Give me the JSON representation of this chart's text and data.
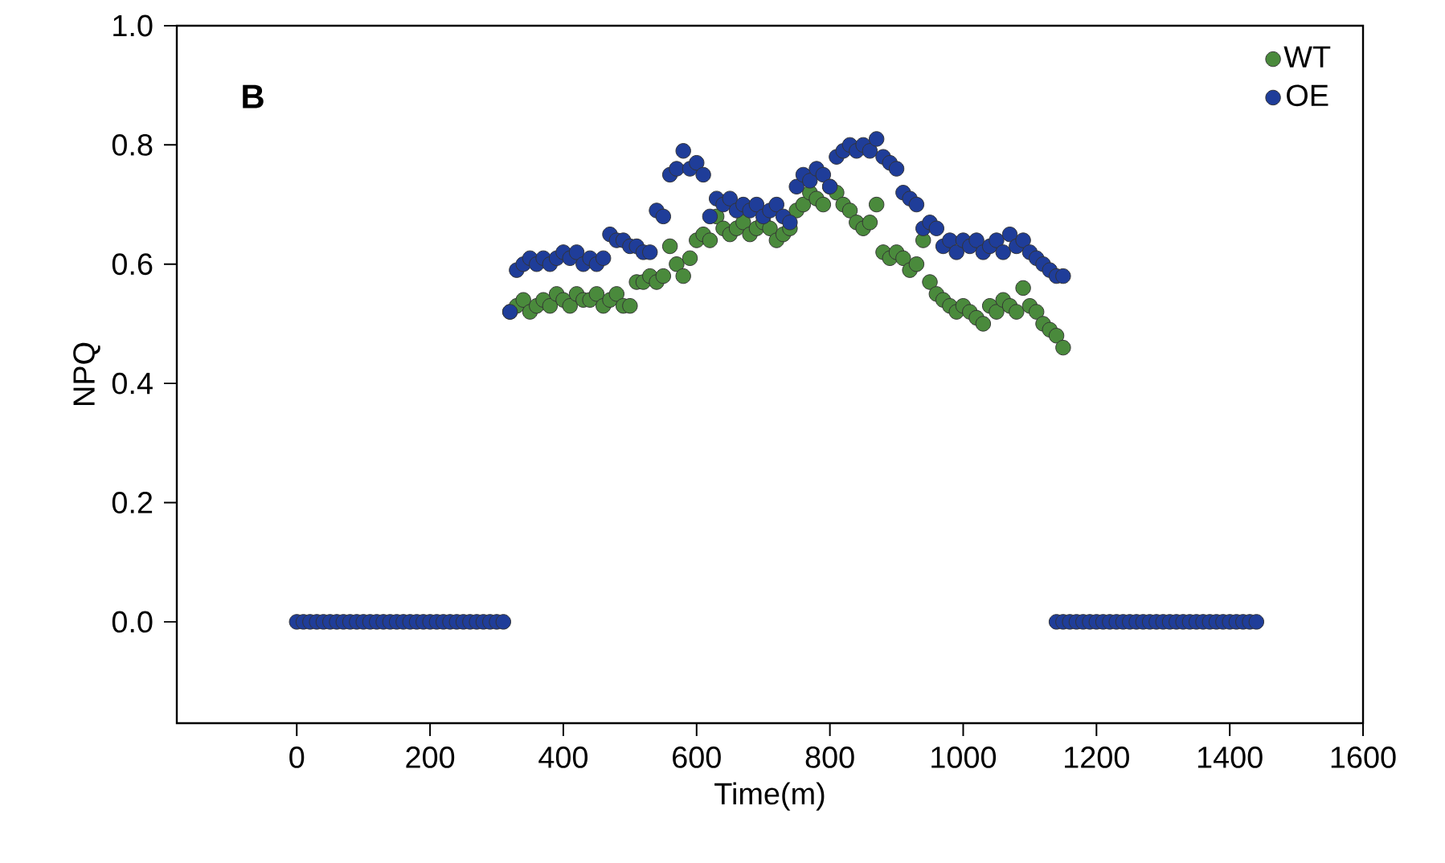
{
  "chart_data": {
    "type": "scatter",
    "xlabel": "Time(m)",
    "ylabel": "NPQ",
    "annotations": [
      "B"
    ],
    "xlim": [
      -180,
      1600
    ],
    "ylim": [
      -0.17,
      1.0
    ],
    "xticks": [
      0,
      200,
      400,
      600,
      800,
      1000,
      1200,
      1400,
      1600
    ],
    "yticks": [
      {
        "value": 0.0,
        "label": "0.0"
      },
      {
        "value": 0.2,
        "label": "0.2"
      },
      {
        "value": 0.4,
        "label": "0.4"
      },
      {
        "value": 0.6,
        "label": "0.6"
      },
      {
        "value": 0.8,
        "label": "0.8"
      },
      {
        "value": 1.0,
        "label": "1.0"
      }
    ],
    "grid": false,
    "legend": "top right",
    "marker": "circle",
    "series": [
      {
        "name": "WT",
        "color": "#4a8a3c",
        "x": [
          320,
          330,
          340,
          350,
          360,
          370,
          380,
          390,
          400,
          410,
          420,
          430,
          440,
          450,
          460,
          470,
          480,
          490,
          500,
          510,
          520,
          530,
          540,
          550,
          560,
          570,
          580,
          590,
          600,
          610,
          620,
          630,
          640,
          650,
          660,
          670,
          680,
          690,
          700,
          710,
          720,
          730,
          740,
          750,
          760,
          770,
          780,
          790,
          800,
          810,
          820,
          830,
          840,
          850,
          860,
          870,
          880,
          890,
          900,
          910,
          920,
          930,
          940,
          950,
          960,
          970,
          980,
          990,
          1000,
          1010,
          1020,
          1030,
          1040,
          1050,
          1060,
          1070,
          1080,
          1090,
          1100,
          1110,
          1120,
          1130,
          1140,
          1150
        ],
        "values": [
          0.52,
          0.53,
          0.54,
          0.52,
          0.53,
          0.54,
          0.53,
          0.55,
          0.54,
          0.53,
          0.55,
          0.54,
          0.54,
          0.55,
          0.53,
          0.54,
          0.55,
          0.53,
          0.53,
          0.57,
          0.57,
          0.58,
          0.57,
          0.58,
          0.63,
          0.6,
          0.58,
          0.61,
          0.64,
          0.65,
          0.64,
          0.68,
          0.66,
          0.65,
          0.66,
          0.67,
          0.65,
          0.66,
          0.67,
          0.66,
          0.64,
          0.65,
          0.66,
          0.69,
          0.7,
          0.72,
          0.71,
          0.7,
          0.73,
          0.72,
          0.7,
          0.69,
          0.67,
          0.66,
          0.67,
          0.7,
          0.62,
          0.61,
          0.62,
          0.61,
          0.59,
          0.6,
          0.64,
          0.57,
          0.55,
          0.54,
          0.53,
          0.52,
          0.53,
          0.52,
          0.51,
          0.5,
          0.53,
          0.52,
          0.54,
          0.53,
          0.52,
          0.56,
          0.53,
          0.52,
          0.5,
          0.49,
          0.48,
          0.46
        ]
      },
      {
        "name": "OE",
        "color": "#1f3d99",
        "x": [
          0,
          10,
          20,
          30,
          40,
          50,
          60,
          70,
          80,
          90,
          100,
          110,
          120,
          130,
          140,
          150,
          160,
          170,
          180,
          190,
          200,
          210,
          220,
          230,
          240,
          250,
          260,
          270,
          280,
          290,
          300,
          310,
          320,
          330,
          340,
          350,
          360,
          370,
          380,
          390,
          400,
          410,
          420,
          430,
          440,
          450,
          460,
          470,
          480,
          490,
          500,
          510,
          520,
          530,
          540,
          550,
          560,
          570,
          580,
          590,
          600,
          610,
          620,
          630,
          640,
          650,
          660,
          670,
          680,
          690,
          700,
          710,
          720,
          730,
          740,
          750,
          760,
          770,
          780,
          790,
          800,
          810,
          820,
          830,
          840,
          850,
          860,
          870,
          880,
          890,
          900,
          910,
          920,
          930,
          940,
          950,
          960,
          970,
          980,
          990,
          1000,
          1010,
          1020,
          1030,
          1040,
          1050,
          1060,
          1070,
          1080,
          1090,
          1100,
          1110,
          1120,
          1130,
          1140,
          1150,
          1140,
          1150,
          1160,
          1170,
          1180,
          1190,
          1200,
          1210,
          1220,
          1230,
          1240,
          1250,
          1260,
          1270,
          1280,
          1290,
          1300,
          1310,
          1320,
          1330,
          1340,
          1350,
          1360,
          1370,
          1380,
          1390,
          1400,
          1410,
          1420,
          1430,
          1440
        ],
        "values": [
          0,
          0,
          0,
          0,
          0,
          0,
          0,
          0,
          0,
          0,
          0,
          0,
          0,
          0,
          0,
          0,
          0,
          0,
          0,
          0,
          0,
          0,
          0,
          0,
          0,
          0,
          0,
          0,
          0,
          0,
          0,
          0,
          0.52,
          0.59,
          0.6,
          0.61,
          0.6,
          0.61,
          0.6,
          0.61,
          0.62,
          0.61,
          0.62,
          0.6,
          0.61,
          0.6,
          0.61,
          0.65,
          0.64,
          0.64,
          0.63,
          0.63,
          0.62,
          0.62,
          0.69,
          0.68,
          0.75,
          0.76,
          0.79,
          0.76,
          0.77,
          0.75,
          0.68,
          0.71,
          0.7,
          0.71,
          0.69,
          0.7,
          0.69,
          0.7,
          0.68,
          0.69,
          0.7,
          0.68,
          0.67,
          0.73,
          0.75,
          0.74,
          0.76,
          0.75,
          0.73,
          0.78,
          0.79,
          0.8,
          0.79,
          0.8,
          0.79,
          0.81,
          0.78,
          0.77,
          0.76,
          0.72,
          0.71,
          0.7,
          0.66,
          0.67,
          0.66,
          0.63,
          0.64,
          0.62,
          0.64,
          0.63,
          0.64,
          0.62,
          0.63,
          0.64,
          0.62,
          0.65,
          0.63,
          0.64,
          0.62,
          0.61,
          0.6,
          0.59,
          0.58,
          0.58,
          0,
          0,
          0,
          0,
          0,
          0,
          0,
          0,
          0,
          0,
          0,
          0,
          0,
          0,
          0,
          0,
          0,
          0,
          0,
          0,
          0,
          0,
          0,
          0,
          0,
          0,
          0,
          0,
          0,
          0,
          0
        ]
      }
    ]
  }
}
